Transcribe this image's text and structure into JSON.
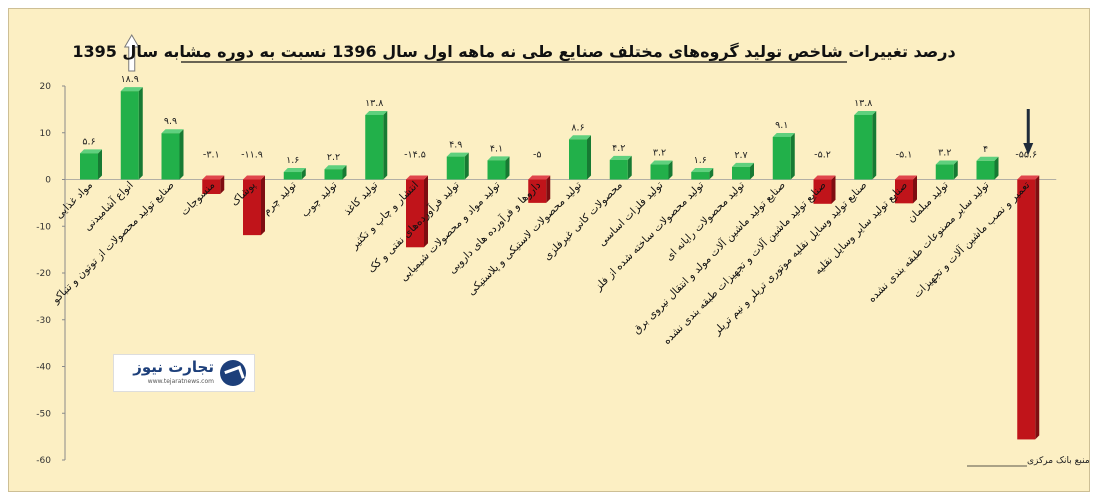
{
  "chart_data": {
    "type": "bar",
    "title": "درصد تغییرات شاخص تولید گروه‌های مختلف صنایع طی نه ماهه اول سال 1396 نسبت به دوره مشابه سال 1395",
    "source": "منبع بانک مرکزی",
    "xlabel": "",
    "ylabel": "",
    "ylim": [
      -60,
      20
    ],
    "yticks": [
      20,
      10,
      0,
      -10,
      -20,
      -30,
      -40,
      -50,
      -60
    ],
    "grid": false,
    "legend": "none",
    "categories": [
      "مواد غذایی",
      "انواع آشامیدنی",
      "صنایع تولید محصولات از توتون و تنباکو",
      "منسوجات",
      "پوشاک",
      "تولید چرم",
      "تولید چوب",
      "تولید کاغذ",
      "انتشار و چاپ و تکثیر",
      "تولید فرآورده‌های نفتی و کک",
      "تولید مواد و محصولات شیمیایی",
      "داروها و فرآورده های دارویی",
      "تولید محصولات لاستیکی و پلاستیکی",
      "محصولات کانی غیرفلزی",
      "تولید فلزات اساسی",
      "تولید محصولات ساخته شده از فلز",
      "تولید محصولات رایانه ای",
      "صنایع تولید ماشین آلات مولد و انتقال نیروی برق",
      "صنایع تولید ماشین آلات و تجهیزات طبقه بندی نشده",
      "صنایع تولید وسایل نقلیه موتوری تریلر و نیم تریلر",
      "صنایع تولید سایر وسایل نقلیه",
      "تولید مبلمان",
      "تولید سایر مصنوعات طبقه بندی نشده",
      "تعمیر و نصب ماشین آلات و تجهیزات"
    ],
    "values": [
      5.6,
      18.9,
      9.9,
      -3.1,
      -11.9,
      1.6,
      2.2,
      13.8,
      -14.5,
      4.9,
      4.1,
      -5,
      8.6,
      4.2,
      3.2,
      1.6,
      2.7,
      9.1,
      -5.2,
      13.8,
      -5.1,
      3.2,
      4,
      -55.6
    ],
    "value_labels": [
      "۵.۶",
      "۱۸.۹",
      "۹.۹",
      "-۳.۱",
      "-۱۱.۹",
      "۱.۶",
      "۲.۲",
      "۱۳.۸",
      "-۱۴.۵",
      "۴.۹",
      "۴.۱",
      "-۵",
      "۸.۶",
      "۴.۲",
      "۳.۲",
      "۱.۶",
      "۲.۷",
      "۹.۱",
      "-۵.۲",
      "۱۳.۸",
      "-۵.۱",
      "۳.۲",
      "۴",
      "-۵۵.۶"
    ],
    "colors": {
      "positive": "#22b04a",
      "negative": "#c0141a",
      "positive_side": "#177a33",
      "negative_side": "#7e0d11"
    },
    "annotations": [
      {
        "type": "hollow-up-arrow",
        "category_index": 1
      },
      {
        "type": "solid-down-arrow",
        "category_index": 23
      }
    ]
  },
  "logo": {
    "name": "تجارت نیوز",
    "url": "www.tejaratnews.com"
  }
}
